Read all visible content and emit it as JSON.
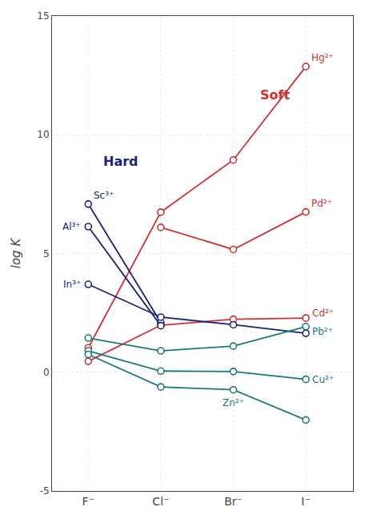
{
  "chart_data": {
    "type": "line",
    "categories": [
      "F⁻",
      "Cl⁻",
      "Br⁻",
      "I⁻"
    ],
    "ylabel": "log K",
    "ylim": [
      -5,
      15
    ],
    "yticks": [
      -5,
      0,
      5,
      10,
      15
    ],
    "grid": true,
    "marker": "circle",
    "series": [
      {
        "name": "Hg²⁺",
        "color": "#d43030",
        "values": [
          1.03,
          6.74,
          8.94,
          12.87
        ]
      },
      {
        "name": "Pd²⁺",
        "color": "#d43030",
        "values": [
          null,
          6.1,
          5.17,
          6.75
        ]
      },
      {
        "name": "Cd²⁺",
        "color": "#d43030",
        "values": [
          0.46,
          1.98,
          2.23,
          2.28
        ]
      },
      {
        "name": "Sc³⁺",
        "color": "#1a237e",
        "values": [
          7.08,
          2.09,
          null,
          null
        ]
      },
      {
        "name": "Al³⁺",
        "color": "#1a237e",
        "values": [
          6.13,
          1.96,
          null,
          null
        ]
      },
      {
        "name": "In³⁺",
        "color": "#1a237e",
        "values": [
          3.7,
          2.32,
          2.0,
          1.64
        ]
      },
      {
        "name": "Pb²⁺",
        "color": "#1a7a7a",
        "values": [
          1.44,
          0.9,
          1.1,
          1.92
        ]
      },
      {
        "name": "Cu²⁺",
        "color": "#1a7a7a",
        "values": [
          0.9,
          0.05,
          0.03,
          -0.3
        ]
      },
      {
        "name": "Zn²⁺",
        "color": "#1a7a7a",
        "values": [
          0.75,
          -0.62,
          -0.74,
          -2.01
        ]
      }
    ],
    "annotations": [
      {
        "text": "Soft",
        "color": "#d43030"
      },
      {
        "text": "Hard",
        "color": "#1a237e"
      }
    ]
  }
}
